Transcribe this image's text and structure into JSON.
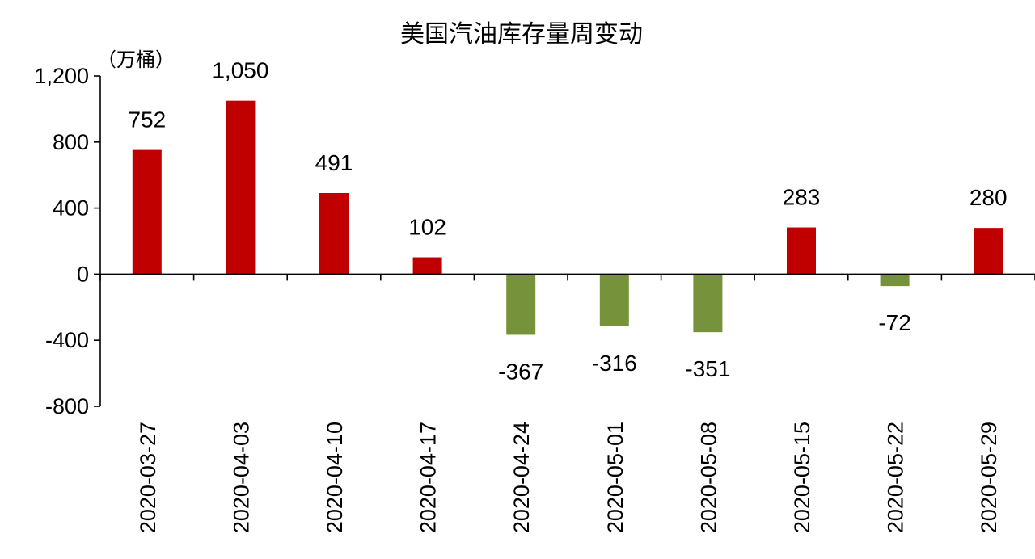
{
  "chart_data": {
    "type": "bar",
    "title": "美国汽油库存量周变动",
    "unit_label": "（万桶）",
    "xlabel": "",
    "ylabel": "",
    "ylim": [
      -800,
      1200
    ],
    "yticks": [
      -800,
      -400,
      0,
      400,
      800,
      1200
    ],
    "ytick_labels": [
      "-800",
      "-400",
      "0",
      "400",
      "800",
      "1,200"
    ],
    "categories": [
      "2020-03-27",
      "2020-04-03",
      "2020-04-10",
      "2020-04-17",
      "2020-04-24",
      "2020-05-01",
      "2020-05-08",
      "2020-05-15",
      "2020-05-22",
      "2020-05-29"
    ],
    "values": [
      752,
      1050,
      491,
      102,
      -367,
      -316,
      -351,
      283,
      -72,
      280
    ],
    "value_labels": [
      "752",
      "1,050",
      "491",
      "102",
      "-367",
      "-316",
      "-351",
      "283",
      "-72",
      "280"
    ],
    "colors": {
      "positive": "#C00000",
      "negative": "#76933C"
    },
    "grid": false,
    "legend": "none"
  }
}
